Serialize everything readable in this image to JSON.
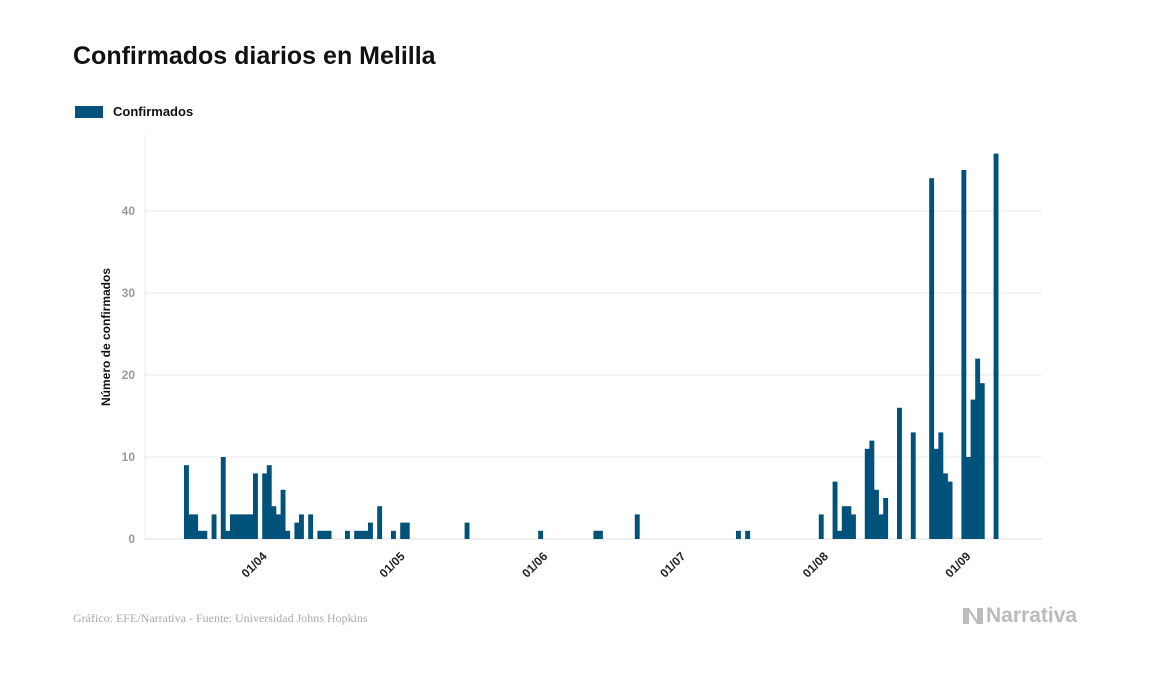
{
  "title": "Confirmados diarios en Melilla",
  "footer": "Gráfico: EFE/Narrativa - Fuente: Universidad Johns Hopkins",
  "logo": "Narrativa",
  "colors": {
    "bar": "#00527a",
    "grid": "#e8e8e8"
  },
  "chart_data": {
    "type": "bar",
    "title": "Confirmados diarios en Melilla",
    "xlabel": "",
    "ylabel": "Número de confirmados",
    "legend": {
      "position": "top-left",
      "entries": [
        "Confirmados"
      ]
    },
    "start_date": "16/03",
    "ylim": [
      0,
      49
    ],
    "yticks": [
      0,
      10,
      20,
      30,
      40
    ],
    "xticks": [
      {
        "day": 16,
        "label": "01/04"
      },
      {
        "day": 46,
        "label": "01/05"
      },
      {
        "day": 77,
        "label": "01/06"
      },
      {
        "day": 107,
        "label": "01/07"
      },
      {
        "day": 138,
        "label": "01/08"
      },
      {
        "day": 169,
        "label": "01/09"
      }
    ],
    "grid": true,
    "series": [
      {
        "name": "Confirmados",
        "values": [
          9,
          3,
          3,
          1,
          1,
          0,
          3,
          0,
          10,
          1,
          3,
          3,
          3,
          3,
          3,
          8,
          0,
          8,
          9,
          4,
          3,
          6,
          1,
          0,
          2,
          3,
          0,
          3,
          0,
          1,
          1,
          1,
          0,
          0,
          0,
          1,
          0,
          1,
          1,
          1,
          2,
          0,
          4,
          0,
          0,
          1,
          0,
          2,
          2,
          0,
          0,
          0,
          0,
          0,
          0,
          0,
          0,
          0,
          0,
          0,
          0,
          2,
          0,
          0,
          0,
          0,
          0,
          0,
          0,
          0,
          0,
          0,
          0,
          0,
          0,
          0,
          0,
          1,
          0,
          0,
          0,
          0,
          0,
          0,
          0,
          0,
          0,
          0,
          0,
          1,
          1,
          0,
          0,
          0,
          0,
          0,
          0,
          0,
          3,
          0,
          0,
          0,
          0,
          0,
          0,
          0,
          0,
          0,
          0,
          0,
          0,
          0,
          0,
          0,
          0,
          0,
          0,
          0,
          0,
          0,
          1,
          0,
          1,
          0,
          0,
          0,
          0,
          0,
          0,
          0,
          0,
          0,
          0,
          0,
          0,
          0,
          0,
          0,
          3,
          0,
          0,
          7,
          1,
          4,
          4,
          3,
          0,
          0,
          11,
          12,
          6,
          3,
          5,
          0,
          0,
          16,
          0,
          0,
          13,
          0,
          0,
          0,
          44,
          11,
          13,
          8,
          7,
          0,
          0,
          45,
          10,
          17,
          22,
          19,
          0,
          0,
          47
        ]
      }
    ]
  }
}
